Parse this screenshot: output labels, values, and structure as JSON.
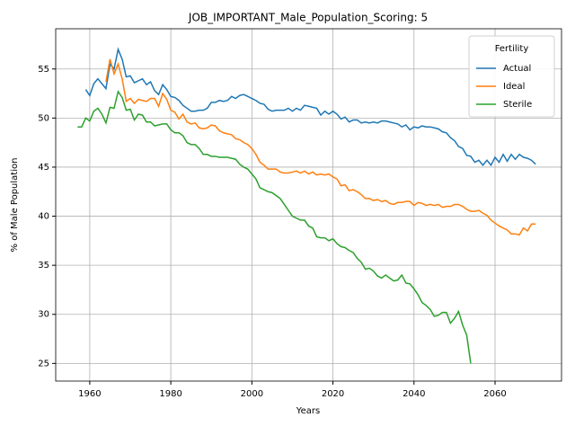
{
  "chart_data": {
    "type": "line",
    "title": "JOB_IMPORTANT_Male_Population_Scoring: 5",
    "xlabel": "Years",
    "ylabel": "% of Male Population",
    "legend_title": "Fertility",
    "legend": "upper right",
    "grid": true,
    "xlim": [
      1951.6,
      2076.4
    ],
    "xticks": [
      1960,
      1980,
      2000,
      2020,
      2040,
      2060
    ],
    "ylim": [
      23.2,
      59.1
    ],
    "yticks": [
      25,
      30,
      35,
      40,
      45,
      50,
      55
    ],
    "x": [
      1957,
      1958,
      1959,
      1960,
      1961,
      1962,
      1963,
      1964,
      1965,
      1966,
      1967,
      1968,
      1969,
      1970,
      1971,
      1972,
      1973,
      1974,
      1975,
      1976,
      1977,
      1978,
      1979,
      1980,
      1981,
      1982,
      1983,
      1984,
      1985,
      1986,
      1987,
      1988,
      1989,
      1990,
      1991,
      1992,
      1993,
      1994,
      1995,
      1996,
      1997,
      1998,
      1999,
      2000,
      2001,
      2002,
      2003,
      2004,
      2005,
      2006,
      2007,
      2008,
      2009,
      2010,
      2011,
      2012,
      2013,
      2014,
      2015,
      2016,
      2017,
      2018,
      2019,
      2020,
      2021,
      2022,
      2023,
      2024,
      2025,
      2026,
      2027,
      2028,
      2029,
      2030,
      2031,
      2032,
      2033,
      2034,
      2035,
      2036,
      2037,
      2038,
      2039,
      2040,
      2041,
      2042,
      2043,
      2044,
      2045,
      2046,
      2047,
      2048,
      2049,
      2050,
      2051,
      2052,
      2053,
      2054,
      2055,
      2056,
      2057,
      2058,
      2059,
      2060,
      2061,
      2062,
      2063,
      2064,
      2065,
      2066,
      2067,
      2068,
      2069,
      2070
    ],
    "series": [
      {
        "name": "Actual",
        "color": "#1f77b4",
        "values": [
          null,
          null,
          52.9,
          52.3,
          53.5,
          54.0,
          53.5,
          53.0,
          55.5,
          55.0,
          57.0,
          56.0,
          54.2,
          54.3,
          53.6,
          53.8,
          54.0,
          53.4,
          53.7,
          52.8,
          52.4,
          53.4,
          52.9,
          52.2,
          52.1,
          51.8,
          51.3,
          51.0,
          50.7,
          50.7,
          50.8,
          50.8,
          51.0,
          51.6,
          51.6,
          51.8,
          51.7,
          51.8,
          52.2,
          52.0,
          52.3,
          52.4,
          52.2,
          52.0,
          51.8,
          51.5,
          51.4,
          50.9,
          50.7,
          50.8,
          50.8,
          50.8,
          51.0,
          50.7,
          51.0,
          50.8,
          51.3,
          51.2,
          51.1,
          51.0,
          50.3,
          50.7,
          50.4,
          50.7,
          50.4,
          49.9,
          50.1,
          49.6,
          49.8,
          49.8,
          49.5,
          49.6,
          49.5,
          49.6,
          49.5,
          49.7,
          49.7,
          49.6,
          49.5,
          49.4,
          49.1,
          49.3,
          48.8,
          49.1,
          49.0,
          49.2,
          49.1,
          49.1,
          49.0,
          48.9,
          48.6,
          48.5,
          48.0,
          47.7,
          47.1,
          46.9,
          46.2,
          46.1,
          45.5,
          45.7,
          45.2,
          45.7,
          45.2,
          46.0,
          45.5,
          46.3,
          45.6,
          46.3,
          45.8,
          46.3,
          46.0,
          45.9,
          45.7,
          45.3
        ]
      },
      {
        "name": "Ideal",
        "color": "#ff7f0e",
        "values": [
          null,
          null,
          null,
          null,
          null,
          null,
          null,
          53.7,
          56.0,
          54.5,
          55.5,
          54.0,
          51.7,
          52.0,
          51.5,
          51.9,
          51.8,
          51.7,
          52.0,
          52.0,
          51.2,
          52.5,
          51.9,
          50.8,
          50.6,
          49.9,
          50.4,
          49.6,
          49.4,
          49.5,
          49.0,
          48.9,
          49.0,
          49.3,
          49.2,
          48.7,
          48.5,
          48.4,
          48.3,
          47.9,
          47.8,
          47.5,
          47.3,
          46.9,
          46.3,
          45.5,
          45.2,
          44.8,
          44.8,
          44.8,
          44.5,
          44.4,
          44.4,
          44.5,
          44.6,
          44.4,
          44.6,
          44.3,
          44.5,
          44.2,
          44.3,
          44.2,
          44.3,
          44.0,
          43.8,
          43.1,
          43.2,
          42.6,
          42.7,
          42.5,
          42.2,
          41.8,
          41.8,
          41.6,
          41.7,
          41.5,
          41.6,
          41.3,
          41.2,
          41.4,
          41.4,
          41.5,
          41.5,
          41.1,
          41.4,
          41.3,
          41.1,
          41.2,
          41.1,
          41.2,
          40.9,
          41.0,
          41.0,
          41.2,
          41.2,
          41.0,
          40.7,
          40.5,
          40.5,
          40.6,
          40.3,
          40.1,
          39.6,
          39.3,
          39.0,
          38.8,
          38.6,
          38.2,
          38.2,
          38.1,
          38.8,
          38.5,
          39.2,
          39.2
        ]
      },
      {
        "name": "Sterile",
        "color": "#2ca02c",
        "values": [
          49.1,
          49.1,
          50.0,
          49.7,
          50.7,
          51.0,
          50.4,
          49.5,
          51.1,
          51.0,
          52.7,
          52.1,
          50.8,
          50.9,
          49.8,
          50.4,
          50.3,
          49.6,
          49.6,
          49.2,
          49.3,
          49.4,
          49.4,
          48.8,
          48.5,
          48.5,
          48.2,
          47.5,
          47.3,
          47.3,
          46.9,
          46.3,
          46.3,
          46.1,
          46.1,
          46.0,
          46.0,
          46.0,
          45.9,
          45.8,
          45.3,
          45.0,
          44.8,
          44.3,
          43.8,
          42.9,
          42.7,
          42.5,
          42.4,
          42.1,
          41.8,
          41.2,
          40.6,
          40.0,
          39.8,
          39.6,
          39.6,
          39.0,
          38.8,
          37.9,
          37.8,
          37.8,
          37.5,
          37.7,
          37.2,
          36.9,
          36.8,
          36.5,
          36.3,
          35.7,
          35.3,
          34.6,
          34.7,
          34.4,
          33.9,
          33.7,
          34.0,
          33.7,
          33.4,
          33.5,
          34.0,
          33.2,
          33.1,
          32.6,
          32.0,
          31.2,
          30.9,
          30.5,
          29.8,
          29.9,
          30.2,
          30.2,
          29.1,
          29.6,
          30.3,
          28.9,
          27.9,
          25.0,
          null,
          null,
          null,
          null,
          null,
          null,
          null,
          null,
          null,
          null,
          null,
          null,
          null,
          null,
          null,
          null
        ]
      }
    ]
  }
}
